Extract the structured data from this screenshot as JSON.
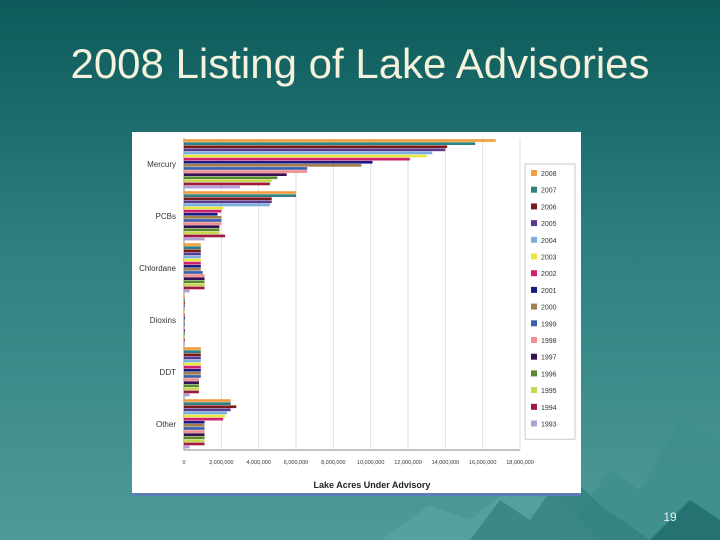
{
  "slide": {
    "title": "2008 Listing of Lake Advisories",
    "page_number": "19"
  },
  "chart_data": {
    "type": "bar",
    "orientation": "horizontal",
    "categories": [
      "Mercury",
      "PCBs",
      "Chlordane",
      "Dioxins",
      "DDT",
      "Other"
    ],
    "xlabel": "Lake Acres Under Advisory",
    "ylabel": "",
    "xlim": [
      0,
      18000000
    ],
    "xticks": [
      "0",
      "2,000,000",
      "4,000,000",
      "6,000,000",
      "8,000,000",
      "10,000,000",
      "12,000,000",
      "14,000,000",
      "16,000,000",
      "18,000,000"
    ],
    "legend_position": "right",
    "grid": true,
    "series": [
      {
        "name": "2008",
        "color": "#f0a040",
        "values": [
          16700000,
          6000000,
          900000,
          0,
          900000,
          2500000
        ]
      },
      {
        "name": "2007",
        "color": "#2f7f7f",
        "values": [
          15600000,
          6000000,
          900000,
          0,
          900000,
          2500000
        ]
      },
      {
        "name": "2006",
        "color": "#7a1a1a",
        "values": [
          14100000,
          4700000,
          900000,
          0,
          900000,
          2800000
        ]
      },
      {
        "name": "2005",
        "color": "#5a3a8f",
        "values": [
          14000000,
          4700000,
          900000,
          0,
          900000,
          2500000
        ]
      },
      {
        "name": "2004",
        "color": "#7ab0e0",
        "values": [
          13300000,
          4600000,
          900000,
          0,
          900000,
          2300000
        ]
      },
      {
        "name": "2003",
        "color": "#e8e840",
        "values": [
          13000000,
          2100000,
          900000,
          0,
          900000,
          2200000
        ]
      },
      {
        "name": "2002",
        "color": "#d02070",
        "values": [
          12100000,
          2000000,
          900000,
          0,
          900000,
          2100000
        ]
      },
      {
        "name": "2001",
        "color": "#1a1a80",
        "values": [
          10100000,
          1800000,
          900000,
          0,
          900000,
          1100000
        ]
      },
      {
        "name": "2000",
        "color": "#a08050",
        "values": [
          9500000,
          2000000,
          900000,
          0,
          900000,
          1100000
        ]
      },
      {
        "name": "1999",
        "color": "#3a5faf",
        "values": [
          6600000,
          2000000,
          1000000,
          0,
          900000,
          1100000
        ]
      },
      {
        "name": "1998",
        "color": "#f09090",
        "values": [
          6600000,
          2000000,
          1100000,
          0,
          800000,
          1100000
        ]
      },
      {
        "name": "1997",
        "color": "#3a1050",
        "values": [
          5500000,
          1900000,
          1100000,
          0,
          800000,
          1100000
        ]
      },
      {
        "name": "1996",
        "color": "#5a8a30",
        "values": [
          5000000,
          1900000,
          1100000,
          0,
          800000,
          1100000
        ]
      },
      {
        "name": "1995",
        "color": "#c8d850",
        "values": [
          4700000,
          1900000,
          1100000,
          0,
          800000,
          1100000
        ]
      },
      {
        "name": "1994",
        "color": "#a01a40",
        "values": [
          4600000,
          2200000,
          1100000,
          0,
          800000,
          1100000
        ]
      },
      {
        "name": "1993",
        "color": "#b0a0d8",
        "values": [
          3000000,
          1100000,
          300000,
          0,
          300000,
          300000
        ]
      }
    ]
  }
}
